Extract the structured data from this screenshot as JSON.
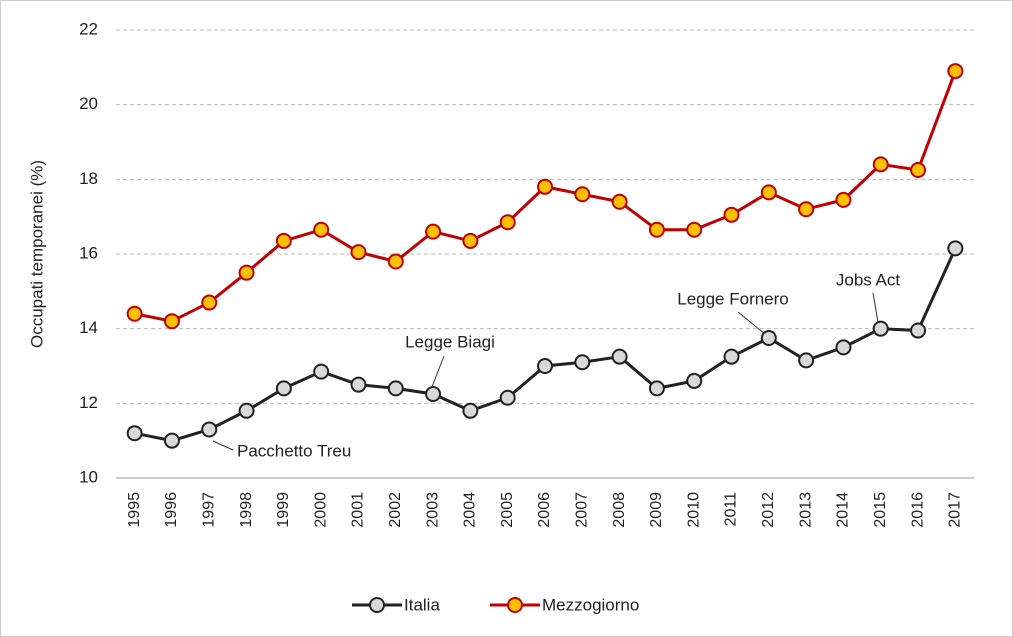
{
  "chart_data": {
    "type": "line",
    "y_label": "Occupati temporanei (%)",
    "categories": [
      "1995",
      "1996",
      "1997",
      "1998",
      "1999",
      "2000",
      "2001",
      "2002",
      "2003",
      "2004",
      "2005",
      "2006",
      "2007",
      "2008",
      "2009",
      "2010",
      "2011",
      "2012",
      "2013",
      "2014",
      "2015",
      "2016",
      "2017"
    ],
    "series": [
      {
        "name": "Italia",
        "color": "#222222",
        "marker_fill": "#d9d9d9",
        "values": [
          11.2,
          11.0,
          11.3,
          11.8,
          12.4,
          12.85,
          12.5,
          12.4,
          12.25,
          11.8,
          12.15,
          13.0,
          13.1,
          13.25,
          12.4,
          12.6,
          13.25,
          13.75,
          13.15,
          13.5,
          14.0,
          13.95,
          16.15
        ]
      },
      {
        "name": "Mezzogiorno",
        "color": "#c00000",
        "marker_fill": "#ffc000",
        "values": [
          14.4,
          14.2,
          14.7,
          15.5,
          16.35,
          16.65,
          16.05,
          15.8,
          16.6,
          16.35,
          16.85,
          17.8,
          17.6,
          17.4,
          16.65,
          16.65,
          17.05,
          17.65,
          17.2,
          17.45,
          18.4,
          18.25,
          20.9
        ]
      }
    ],
    "annotations": [
      "Pacchetto Treu",
      "Legge Biagi",
      "Legge Fornero",
      "Jobs Act"
    ],
    "ylim": [
      10,
      22
    ],
    "yticks": [
      10,
      12,
      14,
      16,
      18,
      20,
      22
    ],
    "grid": true
  }
}
